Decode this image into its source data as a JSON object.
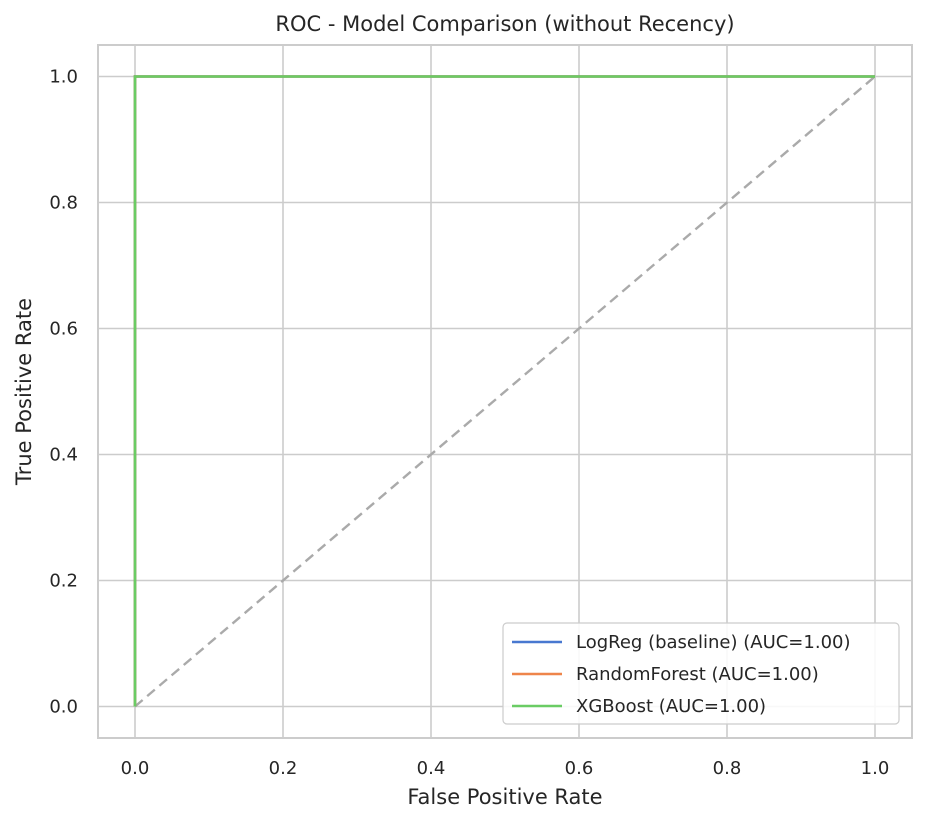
{
  "chart_data": {
    "type": "line",
    "title": "ROC - Model Comparison (without Recency)",
    "xlabel": "False Positive Rate",
    "ylabel": "True Positive Rate",
    "xlim": [
      -0.05,
      1.05
    ],
    "ylim": [
      -0.05,
      1.05
    ],
    "xticks": [
      "0.0",
      "0.2",
      "0.4",
      "0.6",
      "0.8",
      "1.0"
    ],
    "yticks": [
      "0.0",
      "0.2",
      "0.4",
      "0.6",
      "0.8",
      "1.0"
    ],
    "grid": true,
    "legend_position": "lower right",
    "series": [
      {
        "name": "LogReg (baseline) (AUC=1.00)",
        "color": "#4878d0",
        "x": [
          0,
          0,
          1
        ],
        "y": [
          0,
          1,
          1
        ]
      },
      {
        "name": "RandomForest (AUC=1.00)",
        "color": "#ee854a",
        "x": [
          0,
          0,
          1
        ],
        "y": [
          0,
          1,
          1
        ]
      },
      {
        "name": "XGBoost (AUC=1.00)",
        "color": "#6acc64",
        "x": [
          0,
          0,
          1
        ],
        "y": [
          0,
          1,
          1
        ]
      }
    ],
    "reference_line": {
      "style": "dashed",
      "color": "#aaaaaa",
      "x": [
        0,
        1
      ],
      "y": [
        0,
        1
      ]
    }
  }
}
